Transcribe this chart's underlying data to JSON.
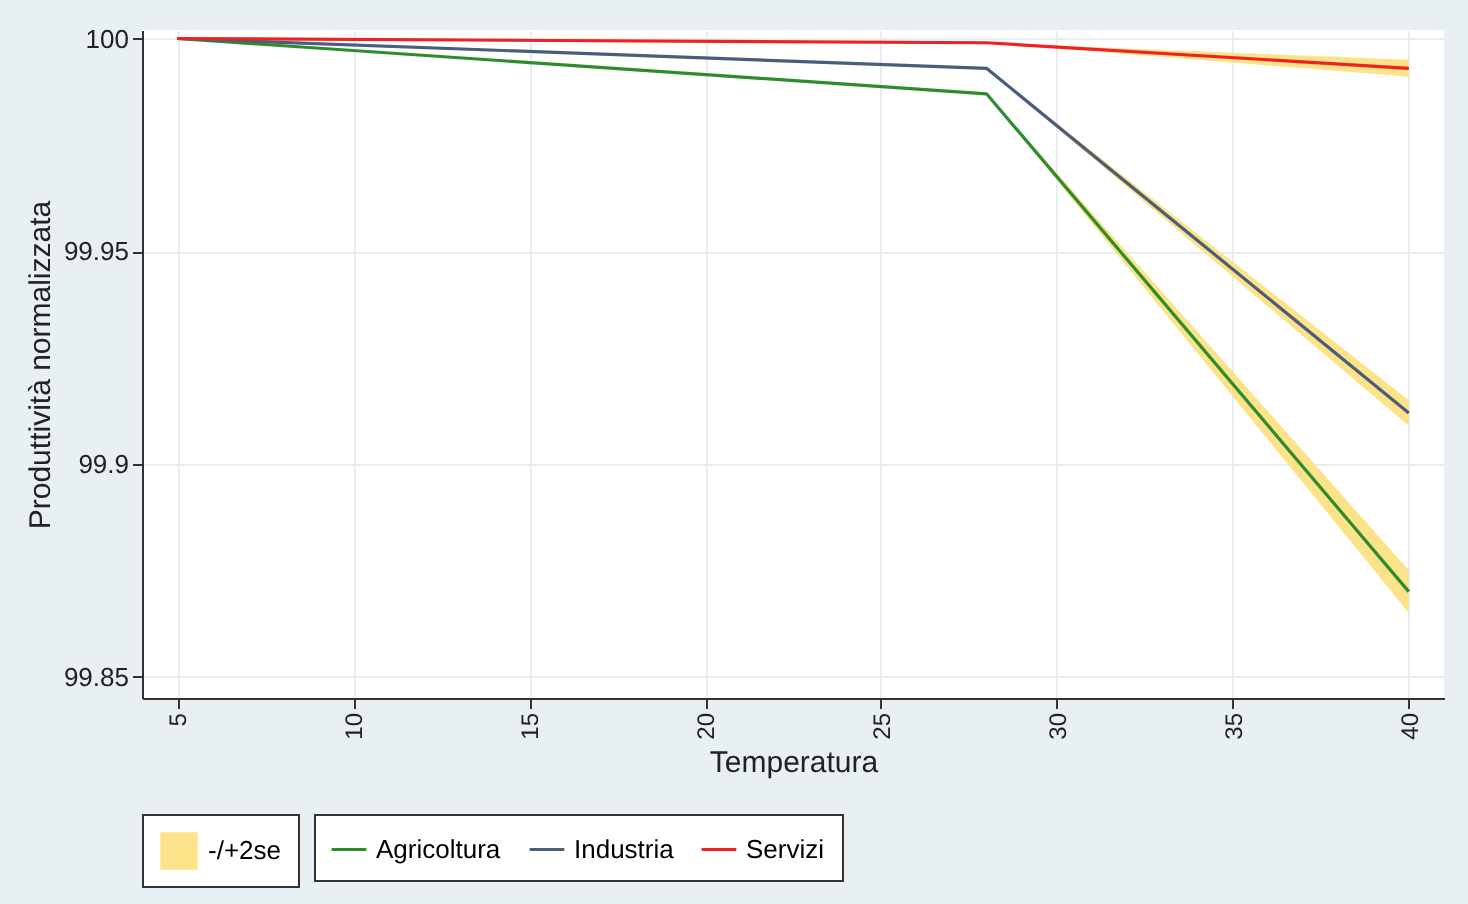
{
  "chart_data": {
    "type": "line",
    "xlabel": "Temperatura",
    "ylabel": "Produttività normalizzata",
    "xlim": [
      4,
      41
    ],
    "xticks": [
      5,
      10,
      15,
      20,
      25,
      30,
      35,
      40
    ],
    "ylim": [
      99.845,
      100.002
    ],
    "yticks": [
      99.85,
      99.9,
      99.95,
      100
    ],
    "grid": true,
    "legend": "bottom",
    "line_style": "solid",
    "marker": "none",
    "series": [
      {
        "name": "Agricoltura",
        "color": "#2e8b2e",
        "x": [
          5,
          28,
          40
        ],
        "values": [
          100,
          99.987,
          99.87
        ],
        "lower": [
          null,
          99.987,
          99.865
        ],
        "upper": [
          null,
          99.987,
          99.875
        ]
      },
      {
        "name": "Industria",
        "color": "#4a5d7a",
        "x": [
          5,
          28,
          40
        ],
        "values": [
          100,
          99.993,
          99.912
        ],
        "lower": [
          null,
          99.993,
          99.909
        ],
        "upper": [
          null,
          99.993,
          99.915
        ]
      },
      {
        "name": "Servizi",
        "color": "#ee2222",
        "x": [
          5,
          28,
          40
        ],
        "values": [
          100,
          99.999,
          99.993
        ],
        "lower": [
          null,
          99.999,
          99.991
        ],
        "upper": [
          null,
          99.999,
          99.995
        ]
      },
      {
        "name": "-/+2se",
        "type": "area",
        "color": "#fce38a"
      }
    ]
  }
}
